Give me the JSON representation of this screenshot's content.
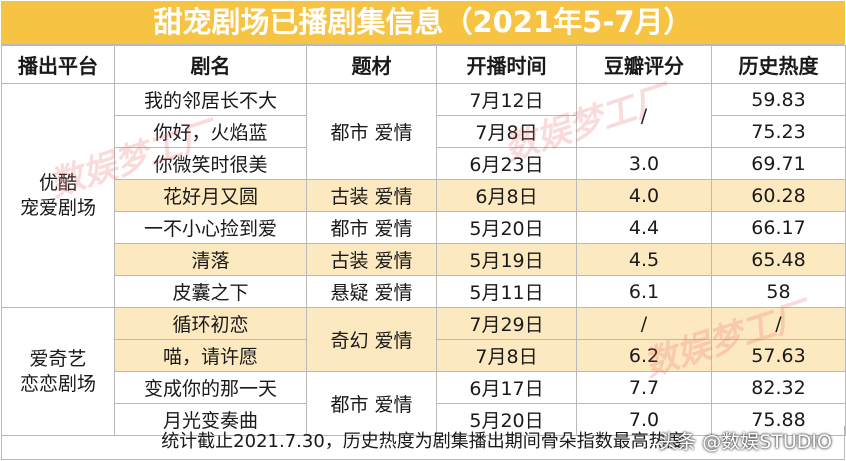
{
  "title": "甜宠剧场已播剧集信息（2021年5-7月）",
  "headers": [
    "播出平台",
    "剧名",
    "题材",
    "开播时间",
    "豆瓣评分",
    "历史热度"
  ],
  "platforms": [
    {
      "name_line1": "优酷",
      "name_line2": "宠爱剧场"
    },
    {
      "name_line1": "爱奇艺",
      "name_line2": "恋恋剧场"
    }
  ],
  "genres": {
    "urban_romance": "都市 爱情",
    "costume_romance": "古装 爱情",
    "suspense_romance": "悬疑 爱情",
    "fantasy_romance": "奇幻 爱情"
  },
  "rows": [
    {
      "name": "我的邻居长不大",
      "date": "7月12日",
      "rating": "",
      "heat": "59.83"
    },
    {
      "name": "你好，火焰蓝",
      "date": "7月8日",
      "rating": "",
      "heat": "75.23"
    },
    {
      "name": "你微笑时很美",
      "date": "6月23日",
      "rating": "3.0",
      "heat": "69.71"
    },
    {
      "name": "花好月又圆",
      "date": "6月8日",
      "rating": "4.0",
      "heat": "60.28"
    },
    {
      "name": "一不小心捡到爱",
      "date": "5月20日",
      "rating": "4.4",
      "heat": "66.17"
    },
    {
      "name": "清落",
      "date": "5月19日",
      "rating": "4.5",
      "heat": "65.48"
    },
    {
      "name": "皮囊之下",
      "date": "5月11日",
      "rating": "6.1",
      "heat": "58"
    },
    {
      "name": "循环初恋",
      "date": "7月29日",
      "rating": "/",
      "heat": "/"
    },
    {
      "name": "喵，请许愿",
      "date": "7月8日",
      "rating": "6.2",
      "heat": "57.63"
    },
    {
      "name": "变成你的那一天",
      "date": "6月17日",
      "rating": "7.7",
      "heat": "82.32"
    },
    {
      "name": "月光变奏曲",
      "date": "5月20日",
      "rating": "7.0",
      "heat": "75.88"
    }
  ],
  "merged_rating_top": "/",
  "footer": "统计截止2021.7.30，历史热度为剧集播出期间骨朵指数最高热度",
  "watermark": "数娱梦工厂",
  "credit": "头条 @数娱STUDIO",
  "colors": {
    "title_bg": "#f7c342",
    "highlight_row": "#fde9c0",
    "border": "#b9b9b9"
  }
}
